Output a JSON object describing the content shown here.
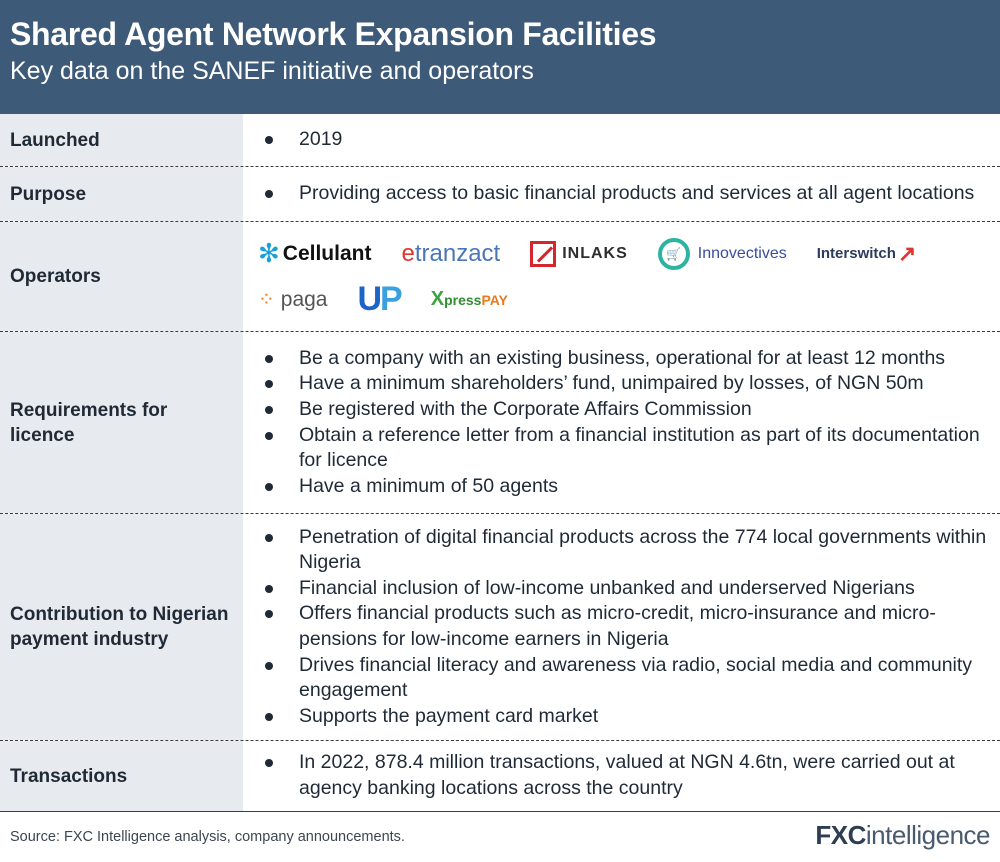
{
  "header": {
    "title": "Shared Agent Network Expansion Facilities",
    "subtitle": "Key data on the SANEF initiative and operators"
  },
  "rows": {
    "launched": {
      "label": "Launched",
      "items": [
        "2019"
      ]
    },
    "purpose": {
      "label": "Purpose",
      "items": [
        "Providing access to basic financial products and services at all agent locations"
      ]
    },
    "operators": {
      "label": "Operators",
      "logos": {
        "cellulant": "Cellulant",
        "etranzact_e": "e",
        "etranzact_rest": "tranzact",
        "inlaks": "INLAKS",
        "innovectives": "Innovectives",
        "interswitch": "Interswitch",
        "paga": "paga",
        "up_u": "U",
        "up_p": "P",
        "xpresspay_x": "X",
        "xpresspay_press": "press",
        "xpresspay_pay": "PAY"
      },
      "logo_colors": {
        "cellulant": "#1aa0d8",
        "etranzact": "#4a76b8",
        "inlaks": "#d6262d",
        "innovectives": "#2bb5a0",
        "interswitch": "#e1342e",
        "paga": "#f0801f",
        "up": "#1e63c7",
        "xpresspay": "#3aa33b"
      }
    },
    "requirements": {
      "label": "Requirements for licence",
      "items": [
        "Be a company with an existing business, operational for at least 12 months",
        "Have a minimum shareholders’ fund, unimpaired by losses, of NGN 50m",
        "Be registered with the Corporate Affairs Commission",
        "Obtain a reference letter from a financial institution as part of its documentation for licence",
        "Have a minimum of 50 agents"
      ]
    },
    "contribution": {
      "label": "Contribution to Nigerian payment industry",
      "items": [
        "Penetration of digital financial products across the 774 local governments within Nigeria",
        "Financial inclusion of low-income unbanked and underserved Nigerians",
        "Offers financial products such as micro-credit, micro-insurance and micro-pensions for low-income earners in Nigeria",
        "Drives financial literacy and awareness via radio, social media and community engagement",
        "Supports the payment card market"
      ]
    },
    "transactions": {
      "label": "Transactions",
      "items": [
        "In 2022, 878.4 million transactions, valued at NGN 4.6tn, were carried out at agency banking locations across the country"
      ]
    }
  },
  "footer": {
    "source": "Source: FXC Intelligence analysis, company announcements.",
    "brand_fx": "FXC",
    "brand_intel": "intelligence"
  },
  "colors": {
    "header_bg": "#3d5a78",
    "label_bg": "#e7ebef",
    "text": "#1f2a36"
  }
}
